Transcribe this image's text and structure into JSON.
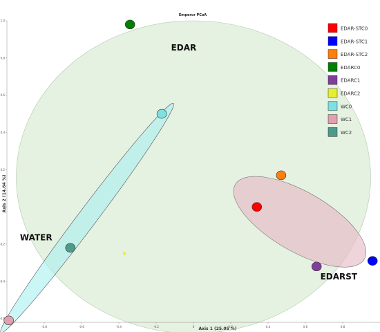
{
  "chart_data": {
    "type": "scatter",
    "title": "Emperor PCoA",
    "xlabel": "Axis 1 (25.05 %)",
    "ylabel": "Axis 2 (14.64 %)",
    "xlim": [
      -1.0,
      1.0
    ],
    "ylim": [
      -0.62,
      1.0
    ],
    "x_ticks": [
      -0.8,
      -0.6,
      -0.4,
      -0.2,
      0.0,
      0.2,
      0.4,
      0.6,
      0.8
    ],
    "x_tick_labels": [
      "-0.8",
      "-0.6",
      "-0.4",
      "-0.2",
      "0",
      "0.2",
      "0.4",
      "0.6",
      "0.8"
    ],
    "y_ticks": [
      -0.6,
      -0.4,
      -0.2,
      0.0,
      0.2,
      0.4,
      0.6,
      0.8,
      1.0
    ],
    "y_tick_labels": [
      "-0.6",
      "-0.4",
      "-0.2",
      "0",
      "0.2",
      "0.4",
      "0.6",
      "0.8",
      "1.0"
    ],
    "grid": false,
    "legend_position": "top-right",
    "series": [
      {
        "name": "EDAR-STC0",
        "color": "#ff0000",
        "x": 0.34,
        "y": 0.0
      },
      {
        "name": "EDAR-STC1",
        "color": "#0000ff",
        "x": 0.96,
        "y": -0.29
      },
      {
        "name": "EDAR-STC2",
        "color": "#ff7f0e",
        "x": 0.47,
        "y": 0.17
      },
      {
        "name": "EDARC0",
        "color": "#007f00",
        "x": -0.34,
        "y": 0.98
      },
      {
        "name": "EDARC1",
        "color": "#7f3f98",
        "x": 0.66,
        "y": -0.32
      },
      {
        "name": "EDARC2",
        "color": "#e6f030",
        "x": -0.37,
        "y": -0.25
      },
      {
        "name": "WC0",
        "color": "#7fe0e0",
        "x": -0.17,
        "y": 0.5
      },
      {
        "name": "WC1",
        "color": "#e0a0b0",
        "x": -0.99,
        "y": -0.61
      },
      {
        "name": "WC2",
        "color": "#4f9a8a",
        "x": -0.66,
        "y": -0.22
      }
    ],
    "group_ellipses": [
      {
        "label": "EDAR",
        "fill": "#cfe6c8",
        "stroke": "#b0c8a8",
        "cx": 0.0,
        "cy": 0.16,
        "rx": 0.95,
        "ry": 0.84,
        "angle": 0
      },
      {
        "label": "WATER",
        "fill": "#a8f0f0",
        "stroke": "#555555",
        "cx": -0.57,
        "cy": -0.06,
        "rx": 0.77,
        "ry": 0.05,
        "angle": 53
      },
      {
        "label": "EDARST",
        "fill": "#e6b8c4",
        "stroke": "#777777",
        "cx": 0.57,
        "cy": -0.08,
        "rx": 0.4,
        "ry": 0.16,
        "angle": -30
      }
    ],
    "group_labels": [
      {
        "text": "EDAR",
        "x": -0.12,
        "y": 0.84
      },
      {
        "text": "WATER",
        "x": -0.93,
        "y": -0.18
      },
      {
        "text": "EDARST",
        "x": 0.68,
        "y": -0.39
      }
    ]
  }
}
